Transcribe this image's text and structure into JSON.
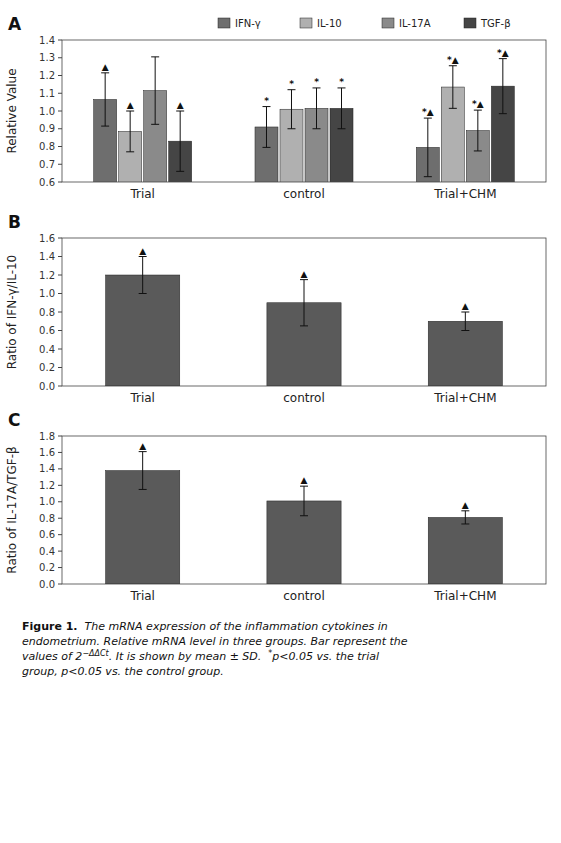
{
  "chart_data": [
    {
      "type": "bar",
      "label": "A",
      "categories": [
        "Trial",
        "control",
        "Trial+CHM"
      ],
      "series": [
        {
          "name": "IFN-γ",
          "color": "#6e6e6e",
          "values": [
            1.065,
            0.91,
            0.795
          ],
          "errors": [
            0.15,
            0.115,
            0.165
          ],
          "annotations": [
            "▲",
            "*",
            "*▲"
          ]
        },
        {
          "name": "IL-10",
          "color": "#b0b0b0",
          "values": [
            0.885,
            1.01,
            1.135
          ],
          "errors": [
            0.115,
            0.11,
            0.12
          ],
          "annotations": [
            "▲",
            "*",
            "*▲"
          ]
        },
        {
          "name": "IL-17A",
          "color": "#8a8a8a",
          "values": [
            1.115,
            1.015,
            0.89
          ],
          "errors": [
            0.19,
            0.115,
            0.115
          ],
          "annotations": [
            null,
            "*",
            "*▲"
          ]
        },
        {
          "name": "TGF-β",
          "color": "#454545",
          "values": [
            0.83,
            1.015,
            1.14
          ],
          "errors": [
            0.17,
            0.115,
            0.155
          ],
          "annotations": [
            "▲",
            "*",
            "*▲"
          ]
        }
      ],
      "ylabel": "Relative Value",
      "ylim": [
        0.6,
        1.4
      ],
      "yticks": [
        0.6,
        0.7,
        0.8,
        0.9,
        {
          "value": 1.0,
          "label": "1.0"
        },
        1.1,
        1.2,
        1.3,
        1.4
      ],
      "legend": "top",
      "grid": false
    },
    {
      "type": "bar",
      "label": "B",
      "categories": [
        "Trial",
        "control",
        "Trial+CHM"
      ],
      "values": [
        1.2,
        0.9,
        0.7
      ],
      "errors": [
        0.2,
        0.25,
        0.1
      ],
      "annotations": [
        "▲",
        "▲",
        "▲"
      ],
      "color": "#5a5a5a",
      "ylabel": "Ratio of IFN-γ/IL-10",
      "ylim": [
        0,
        1.6
      ],
      "yticks": [
        {
          "value": 0,
          "label": "0.0"
        },
        0.2,
        0.4,
        0.6,
        0.8,
        {
          "value": 1.0,
          "label": "1.0"
        },
        1.2,
        1.4,
        1.6
      ],
      "grid": false
    },
    {
      "type": "bar",
      "label": "C",
      "categories": [
        "Trial",
        "control",
        "Trial+CHM"
      ],
      "values": [
        1.38,
        1.01,
        0.81
      ],
      "errors": [
        0.23,
        0.18,
        0.08
      ],
      "annotations": [
        "▲",
        "▲",
        "▲"
      ],
      "color": "#5a5a5a",
      "ylabel": "Ratio of IL-17A/TGF-β",
      "ylim": [
        0,
        1.8
      ],
      "yticks": [
        {
          "value": 0,
          "label": "0.0"
        },
        0.2,
        0.4,
        0.6,
        0.8,
        {
          "value": 1.0,
          "label": "1.0"
        },
        1.2,
        1.4,
        1.6,
        1.8
      ],
      "grid": false
    }
  ],
  "caption": {
    "title": "Figure 1.",
    "lines": [
      "The mRNA expression of the inflammation cytokines in",
      "endometrium. Relative mRNA level in three groups. Bar represent the",
      [
        "values of 2",
        "−ΔΔCt",
        ". It is shown by mean ± SD.  ",
        "*",
        "p<0.05 vs. the trial"
      ],
      "group, p<0.05 vs. the control group."
    ]
  }
}
